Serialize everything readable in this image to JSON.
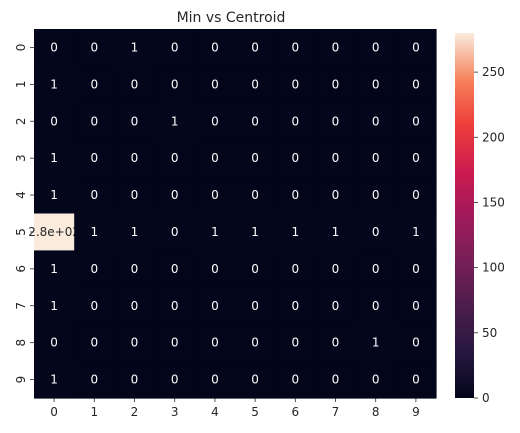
{
  "chart_data": {
    "type": "heatmap",
    "title": "Min vs Centroid",
    "xlabel": "",
    "ylabel": "",
    "x_tick_labels": [
      "0",
      "1",
      "2",
      "3",
      "4",
      "5",
      "6",
      "7",
      "8",
      "9"
    ],
    "y_tick_labels": [
      "0",
      "1",
      "2",
      "3",
      "4",
      "5",
      "6",
      "7",
      "8",
      "9"
    ],
    "values": [
      [
        0,
        0,
        1,
        0,
        0,
        0,
        0,
        0,
        0,
        0
      ],
      [
        1,
        0,
        0,
        0,
        0,
        0,
        0,
        0,
        0,
        0
      ],
      [
        0,
        0,
        0,
        1,
        0,
        0,
        0,
        0,
        0,
        0
      ],
      [
        1,
        0,
        0,
        0,
        0,
        0,
        0,
        0,
        0,
        0
      ],
      [
        1,
        0,
        0,
        0,
        0,
        0,
        0,
        0,
        0,
        0
      ],
      [
        280,
        1,
        1,
        0,
        1,
        1,
        1,
        1,
        0,
        1
      ],
      [
        1,
        0,
        0,
        0,
        0,
        0,
        0,
        0,
        0,
        0
      ],
      [
        1,
        0,
        0,
        0,
        0,
        0,
        0,
        0,
        0,
        0
      ],
      [
        0,
        0,
        0,
        0,
        0,
        0,
        0,
        0,
        1,
        0
      ],
      [
        1,
        0,
        0,
        0,
        0,
        0,
        0,
        0,
        0,
        0
      ]
    ],
    "annotations": [
      [
        "0",
        "0",
        "1",
        "0",
        "0",
        "0",
        "0",
        "0",
        "0",
        "0"
      ],
      [
        "1",
        "0",
        "0",
        "0",
        "0",
        "0",
        "0",
        "0",
        "0",
        "0"
      ],
      [
        "0",
        "0",
        "0",
        "1",
        "0",
        "0",
        "0",
        "0",
        "0",
        "0"
      ],
      [
        "1",
        "0",
        "0",
        "0",
        "0",
        "0",
        "0",
        "0",
        "0",
        "0"
      ],
      [
        "1",
        "0",
        "0",
        "0",
        "0",
        "0",
        "0",
        "0",
        "0",
        "0"
      ],
      [
        "2.8e+02",
        "1",
        "1",
        "0",
        "1",
        "1",
        "1",
        "1",
        "0",
        "1"
      ],
      [
        "1",
        "0",
        "0",
        "0",
        "0",
        "0",
        "0",
        "0",
        "0",
        "0"
      ],
      [
        "1",
        "0",
        "0",
        "0",
        "0",
        "0",
        "0",
        "0",
        "0",
        "0"
      ],
      [
        "0",
        "0",
        "0",
        "0",
        "0",
        "0",
        "0",
        "0",
        "1",
        "0"
      ],
      [
        "1",
        "0",
        "0",
        "0",
        "0",
        "0",
        "0",
        "0",
        "0",
        "0"
      ]
    ],
    "colorbar": {
      "range": [
        0,
        280
      ],
      "ticks": [
        0,
        50,
        100,
        150,
        200,
        250
      ],
      "colormap": "rocket",
      "low_color": "#03051a",
      "high_color": "#faebdd"
    },
    "grid": false
  }
}
